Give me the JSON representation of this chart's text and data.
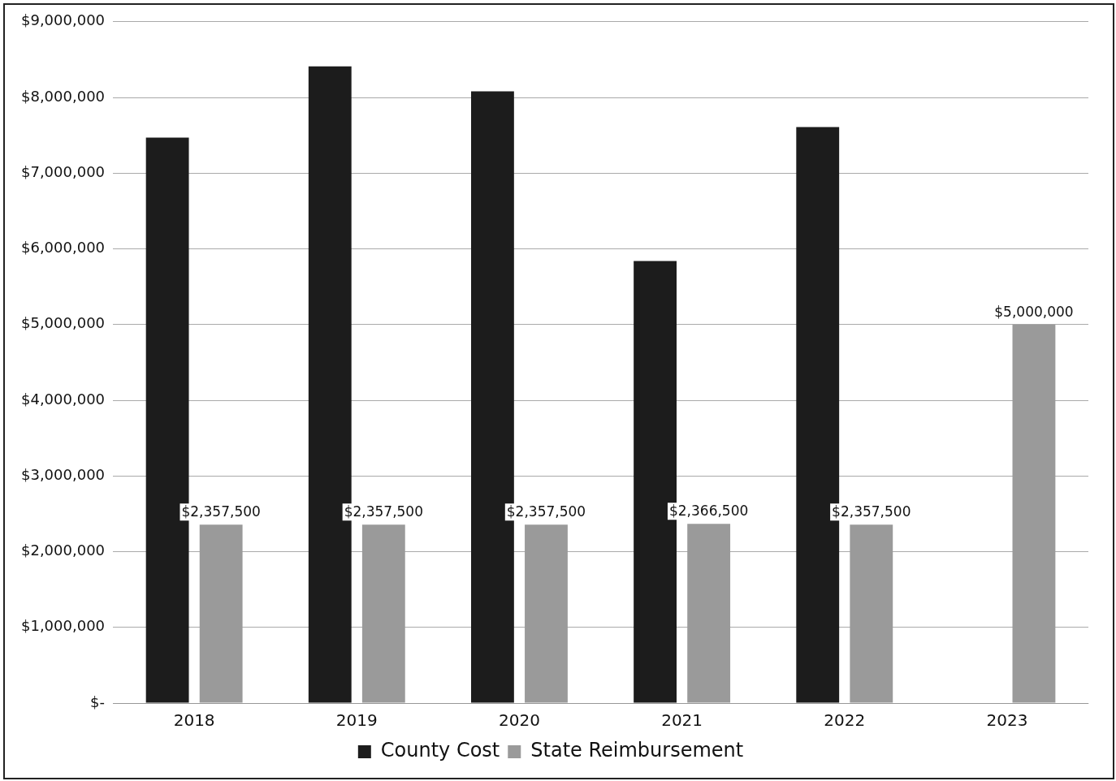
{
  "chart_data": {
    "type": "bar",
    "categories": [
      "2018",
      "2019",
      "2020",
      "2021",
      "2022",
      "2023"
    ],
    "series": [
      {
        "name": "County Cost",
        "color": "#1c1c1c",
        "values": [
          7470000,
          8410000,
          8080000,
          5840000,
          7610000,
          null
        ]
      },
      {
        "name": "State Reimbursement",
        "color": "#9a9a9a",
        "values": [
          2357500,
          2357500,
          2357500,
          2366500,
          2357500,
          5000000
        ],
        "value_labels": [
          "$2,357,500",
          "$2,357,500",
          "$2,357,500",
          "$2,366,500",
          "$2,357,500",
          "$5,000,000"
        ]
      }
    ],
    "ylim": [
      0,
      9000000
    ],
    "yticks": [
      {
        "value": 0,
        "label": "$-"
      },
      {
        "value": 1000000,
        "label": "$1,000,000"
      },
      {
        "value": 2000000,
        "label": "$2,000,000"
      },
      {
        "value": 3000000,
        "label": "$3,000,000"
      },
      {
        "value": 4000000,
        "label": "$4,000,000"
      },
      {
        "value": 5000000,
        "label": "$5,000,000"
      },
      {
        "value": 6000000,
        "label": "$6,000,000"
      },
      {
        "value": 7000000,
        "label": "$7,000,000"
      },
      {
        "value": 8000000,
        "label": "$8,000,000"
      },
      {
        "value": 9000000,
        "label": "$9,000,000"
      }
    ],
    "grid": "y",
    "legend": "bottom"
  }
}
